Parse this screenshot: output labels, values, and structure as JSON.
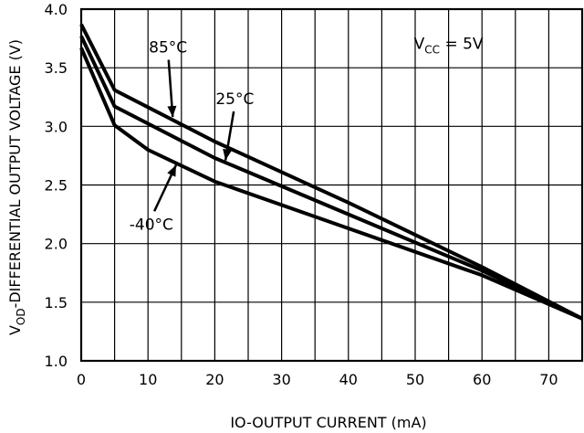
{
  "chart_data": {
    "type": "line",
    "title": "",
    "xlabel": "IO-OUTPUT CURRENT (mA)",
    "ylabel": {
      "main": "V",
      "sub": "OD",
      "rest": "-DIFFERENTIAL OUTPUT VOLTAGE (V)"
    },
    "xlim": [
      0,
      75
    ],
    "ylim": [
      1.0,
      4.0
    ],
    "x_ticks": [
      0,
      10,
      20,
      30,
      40,
      50,
      60,
      70
    ],
    "x_tick_labels": [
      "0",
      "10",
      "20",
      "30",
      "40",
      "50",
      "60",
      "70"
    ],
    "y_ticks": [
      1.0,
      1.5,
      2.0,
      2.5,
      3.0,
      3.5,
      4.0
    ],
    "y_tick_labels": [
      "1.0",
      "1.5",
      "2.0",
      "2.5",
      "3.0",
      "3.5",
      "4.0"
    ],
    "x_grid_lines": [
      5,
      10,
      15,
      20,
      25,
      30,
      35,
      40,
      45,
      50,
      55,
      60,
      65,
      70
    ],
    "y_grid_lines": [
      1.5,
      2.0,
      2.5,
      3.0,
      3.5
    ],
    "grid": true,
    "series": [
      {
        "name": "85°C",
        "x": [
          0,
          5,
          20,
          40,
          60,
          75
        ],
        "y": [
          3.87,
          3.31,
          2.87,
          2.35,
          1.8,
          1.36
        ]
      },
      {
        "name": "25°C",
        "x": [
          0,
          5,
          20,
          40,
          60,
          75
        ],
        "y": [
          3.77,
          3.17,
          2.73,
          2.25,
          1.77,
          1.36
        ]
      },
      {
        "name": "-40°C",
        "x": [
          0,
          5,
          10,
          20,
          40,
          60,
          75
        ],
        "y": [
          3.67,
          3.01,
          2.8,
          2.53,
          2.13,
          1.73,
          1.36
        ]
      }
    ],
    "annotations": [
      {
        "text": "85°C",
        "series": "85°C",
        "label_at": [
          13,
          3.63
        ],
        "arrow_to": [
          13.7,
          3.08
        ]
      },
      {
        "text": "25°C",
        "series": "25°C",
        "label_at": [
          23,
          3.19
        ],
        "arrow_to": [
          21.6,
          2.71
        ]
      },
      {
        "text": "-40°C",
        "series": "-40°C",
        "label_at": [
          10.5,
          2.12
        ],
        "arrow_to": [
          14.2,
          2.67
        ]
      },
      {
        "text": "V",
        "sub": "CC",
        "rest": " = 5V",
        "label_at": [
          55,
          3.66
        ]
      }
    ]
  }
}
